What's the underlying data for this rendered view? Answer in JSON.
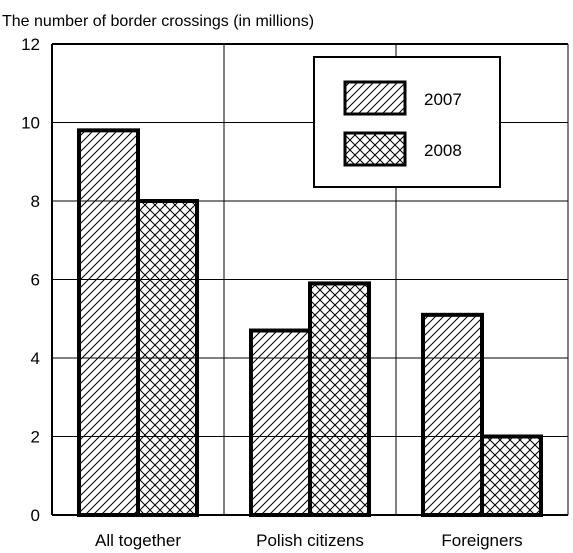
{
  "chart_data": {
    "type": "bar",
    "title": "The number of border crossings (in millions)",
    "xlabel": "",
    "ylabel": "",
    "categories": [
      "All together",
      "Polish citizens",
      "Foreigners"
    ],
    "series": [
      {
        "name": "2007",
        "values": [
          9.8,
          4.7,
          5.1
        ],
        "pattern": "diagonal-hatch"
      },
      {
        "name": "2008",
        "values": [
          8.0,
          5.9,
          2.0
        ],
        "pattern": "cross-hatch"
      }
    ],
    "ylim": [
      0,
      12
    ],
    "yticks": [
      "0",
      "2",
      "4",
      "6",
      "8",
      "10",
      "12"
    ],
    "grid": true,
    "legend_position": "top-right",
    "colors": {
      "bar_fill": "#ffffff",
      "stroke": "#000000"
    }
  }
}
